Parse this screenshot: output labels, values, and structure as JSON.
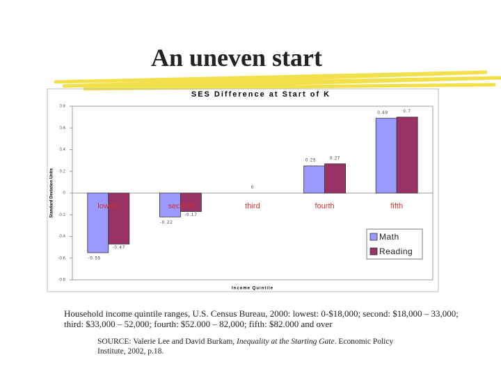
{
  "title": "An uneven start",
  "chart_data": {
    "type": "bar",
    "title": "SES Difference at Start of K",
    "y_label": "Standard Deviation Units",
    "x_label": "Income Quintile",
    "categories": [
      "lowest",
      "second",
      "third",
      "fourth",
      "fifth"
    ],
    "series": [
      {
        "name": "Math",
        "color": "#9999ff",
        "values": [
          -0.55,
          -0.22,
          0,
          0.25,
          0.69
        ],
        "value_labels": [
          "-0.55",
          "-0.22",
          "0",
          "0.25",
          "0.69"
        ]
      },
      {
        "name": "Reading",
        "color": "#993366",
        "values": [
          -0.47,
          -0.17,
          0,
          0.27,
          0.7
        ],
        "value_labels": [
          "-0.47",
          "-0.17",
          null,
          "0.27",
          "0.7"
        ]
      }
    ],
    "ylim": [
      -0.8,
      0.8
    ],
    "yticks": [
      0.8,
      0.6,
      0.4,
      0.2,
      0,
      -0.2,
      -0.4,
      -0.6,
      -0.8
    ],
    "legend": "lower right",
    "category_label_color": "#cc3333"
  },
  "footnote": "Household income quintile ranges, U.S. Census Bureau, 2000: lowest: 0-$18,000; second: $18,000 – 33,000; third: $33,000 – 52,000; fourth: $52.000 – 82,000; fifth: $82.000 and over",
  "source": {
    "prefix": "SOURCE: Valerie Lee and David Burkam,",
    "title": "Inequality at the Starting Gate",
    "suffix": ". Economic Policy Institute, 2002, p.18."
  }
}
